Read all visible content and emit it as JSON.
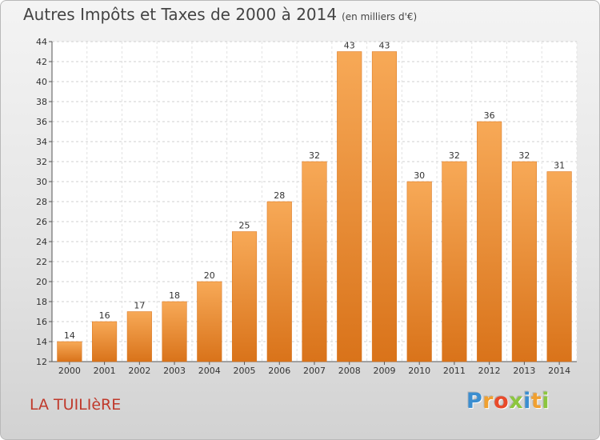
{
  "title": "Autres Impôts et Taxes de 2000 à 2014",
  "unit_note": "(en milliers d'€)",
  "commune_name": "LA TUILIèRE",
  "brand": {
    "name": "Proxiti",
    "letters": [
      "P",
      "r",
      "o",
      "x",
      "i",
      "t",
      "i"
    ],
    "letter_colors": [
      "#3b8ed0",
      "#f0a030",
      "#e84a2a",
      "#8cc63f",
      "#3b8ed0",
      "#f0a030",
      "#8cc63f"
    ]
  },
  "chart_data": {
    "type": "bar",
    "categories": [
      "2000",
      "2001",
      "2002",
      "2003",
      "2004",
      "2005",
      "2006",
      "2007",
      "2008",
      "2009",
      "2010",
      "2011",
      "2012",
      "2013",
      "2014"
    ],
    "values": [
      14,
      16,
      17,
      18,
      20,
      25,
      28,
      32,
      43,
      43,
      30,
      32,
      36,
      32,
      31
    ],
    "ylim": [
      12,
      44
    ],
    "yticks": [
      12,
      14,
      16,
      18,
      20,
      22,
      24,
      26,
      28,
      30,
      32,
      34,
      36,
      38,
      40,
      42,
      44
    ],
    "grid": true,
    "bar_color": "#f39c3d",
    "xlabel": "",
    "ylabel": ""
  }
}
